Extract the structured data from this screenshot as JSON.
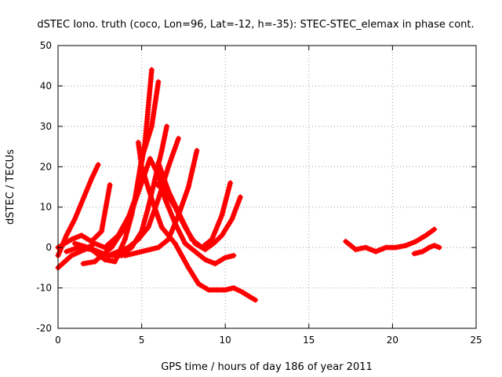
{
  "chart_data": {
    "type": "line",
    "title": "dSTEC Iono. truth (coco, Lon=96, Lat=-12, h=-35): STEC-STEC_elemax in phase cont.",
    "xlabel": "GPS time / hours of day 186 of year 2011",
    "ylabel": "dSTEC  / TECUs",
    "xlim": [
      0,
      25
    ],
    "ylim": [
      -20,
      50
    ],
    "xticks": [
      0,
      5,
      10,
      15,
      20,
      25
    ],
    "yticks": [
      -20,
      -10,
      0,
      10,
      20,
      30,
      40,
      50
    ],
    "grid": true,
    "legend": "none",
    "marker": "plus",
    "color": "#ff0000",
    "series": [
      {
        "x": [
          0.0,
          0.5,
          1.0,
          1.5,
          2.0,
          2.4
        ],
        "y": [
          -2,
          3,
          7,
          12,
          17,
          20.5
        ]
      },
      {
        "x": [
          0.0,
          0.8,
          1.4,
          2.0,
          2.6,
          3.1
        ],
        "y": [
          0,
          2,
          3,
          1.5,
          4,
          15.5
        ]
      },
      {
        "x": [
          0.0,
          0.8,
          1.6,
          2.2,
          2.8,
          3.6,
          4.4,
          5.0,
          5.5
        ],
        "y": [
          -5,
          -2,
          -0.5,
          1,
          0,
          3,
          9,
          16,
          22
        ]
      },
      {
        "x": [
          0.5,
          1.2,
          2.0,
          2.8,
          3.4,
          4.0,
          4.4,
          4.8,
          5.2,
          5.6
        ],
        "y": [
          -1,
          0,
          -0.5,
          -3,
          -3.5,
          2,
          8,
          16,
          26,
          44
        ]
      },
      {
        "x": [
          1.5,
          2.2,
          2.6,
          3.2,
          4.0,
          4.6,
          5.0,
          5.6,
          6.0
        ],
        "y": [
          -4,
          -3.5,
          -2,
          0,
          5,
          12,
          22,
          30,
          41
        ]
      },
      {
        "x": [
          1.0,
          1.8,
          2.4,
          3.0,
          3.8,
          4.4,
          5.0,
          5.4,
          5.8,
          6.2,
          6.5
        ],
        "y": [
          1,
          0,
          -1,
          -2,
          -2,
          0,
          4,
          10,
          17,
          24,
          30
        ]
      },
      {
        "x": [
          3.0,
          3.6,
          4.2,
          4.8,
          5.4,
          6.0,
          6.6,
          7.2
        ],
        "y": [
          -2,
          -1,
          0,
          2,
          5,
          12,
          20,
          27
        ]
      },
      {
        "x": [
          4.8,
          5.0,
          5.6,
          6.2,
          7.0,
          7.8,
          8.4,
          9.0,
          9.5,
          10.0,
          10.5,
          11.0,
          11.4,
          11.8
        ],
        "y": [
          26,
          20,
          12,
          5,
          1,
          -5,
          -9,
          -10.5,
          -10.5,
          -10.5,
          -10,
          -11,
          -12,
          -13
        ]
      },
      {
        "x": [
          5.5,
          6.0,
          6.4,
          7.0,
          7.6,
          8.2,
          8.8,
          9.4,
          10.0,
          10.5
        ],
        "y": [
          22,
          18,
          12,
          6,
          1,
          -1,
          -3,
          -4,
          -2.5,
          -2
        ]
      },
      {
        "x": [
          5.8,
          6.4,
          7.0,
          7.6,
          8.2,
          8.8,
          9.3,
          9.8,
          10.4,
          10.9
        ],
        "y": [
          16,
          14,
          10,
          5,
          1,
          -0.5,
          1,
          3,
          7,
          12.5
        ]
      },
      {
        "x": [
          6.0,
          6.6,
          7.4,
          8.0,
          8.6,
          9.2,
          9.8,
          10.3
        ],
        "y": [
          21,
          14,
          7,
          2,
          0,
          2,
          8,
          16
        ]
      },
      {
        "x": [
          4.0,
          5.0,
          6.0,
          6.6,
          7.2,
          7.8,
          8.3
        ],
        "y": [
          -2,
          -1,
          0,
          2,
          8,
          15,
          24
        ]
      },
      {
        "x": [
          17.2,
          17.8,
          18.4,
          19.0,
          19.6,
          20.2,
          20.8,
          21.4,
          22.0,
          22.5
        ],
        "y": [
          1.5,
          -0.5,
          0,
          -1,
          0,
          0,
          0.5,
          1.5,
          3,
          4.5
        ]
      },
      {
        "x": [
          21.3,
          21.8,
          22.2,
          22.5,
          22.8
        ],
        "y": [
          -1.5,
          -1,
          0,
          0.5,
          0
        ]
      }
    ]
  }
}
